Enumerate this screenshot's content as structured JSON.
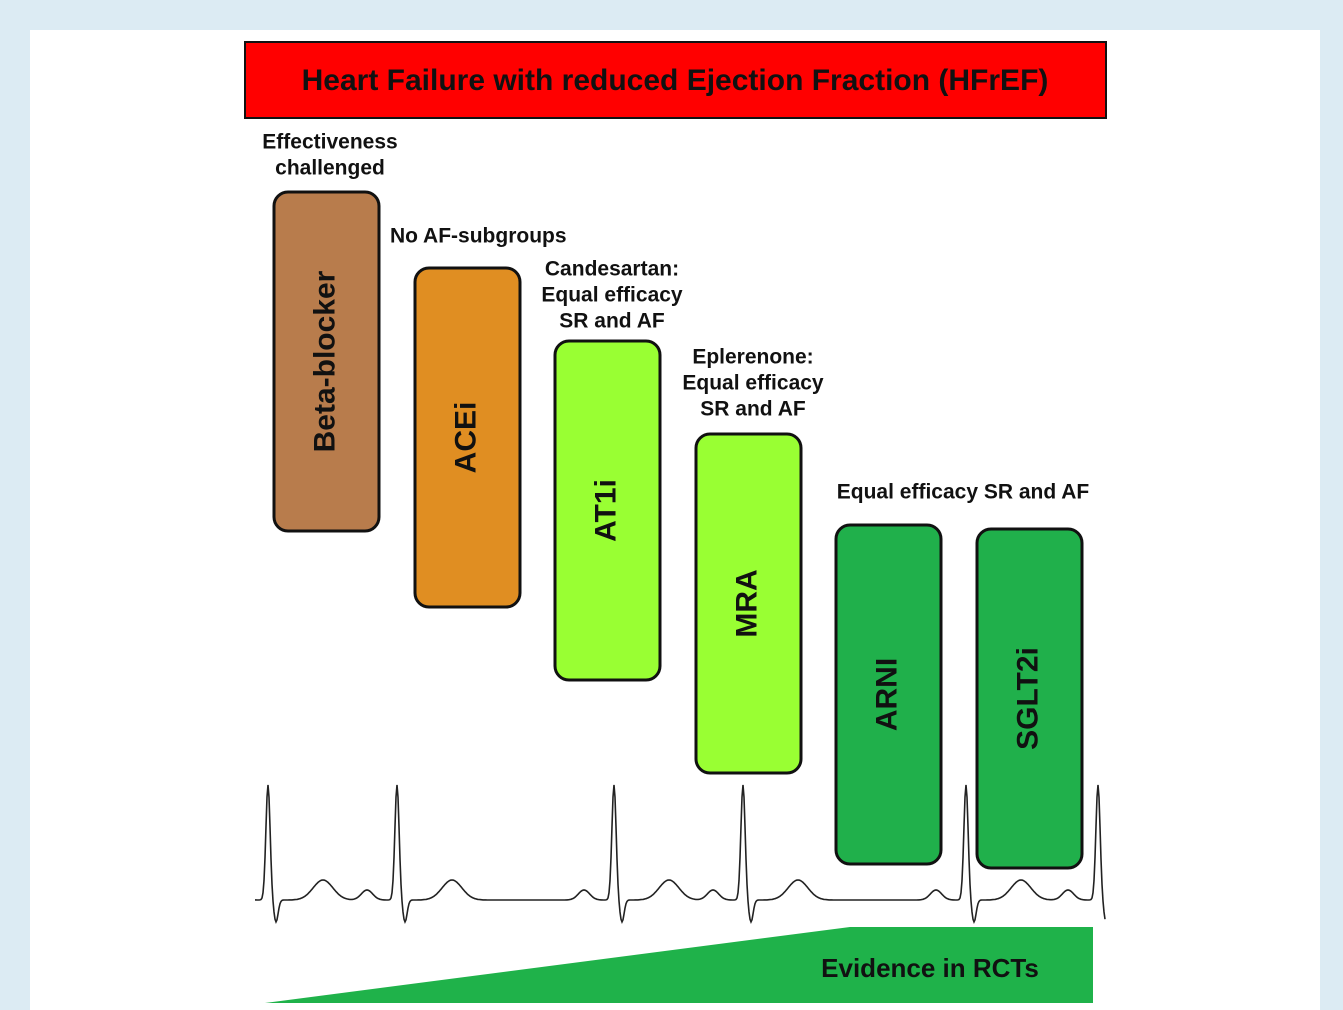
{
  "title": "Heart Failure with reduced Ejection Fraction (HFrEF)",
  "drugs": [
    {
      "label": "Beta-blocker",
      "annotation": [
        "Effectiveness",
        "challenged"
      ]
    },
    {
      "label": "ACEi",
      "annotation": [
        "No AF-subgroups"
      ]
    },
    {
      "label": "AT1i",
      "annotation": [
        "Candesartan:",
        "Equal efficacy",
        "SR and AF"
      ]
    },
    {
      "label": "MRA",
      "annotation": [
        "Eplerenone:",
        "Equal efficacy",
        "SR and AF"
      ]
    },
    {
      "label": "ARNI",
      "annotation": [
        "Equal efficacy SR and AF"
      ]
    },
    {
      "label": "SGLT2i"
    }
  ],
  "evidence_label": "Evidence in RCTs"
}
